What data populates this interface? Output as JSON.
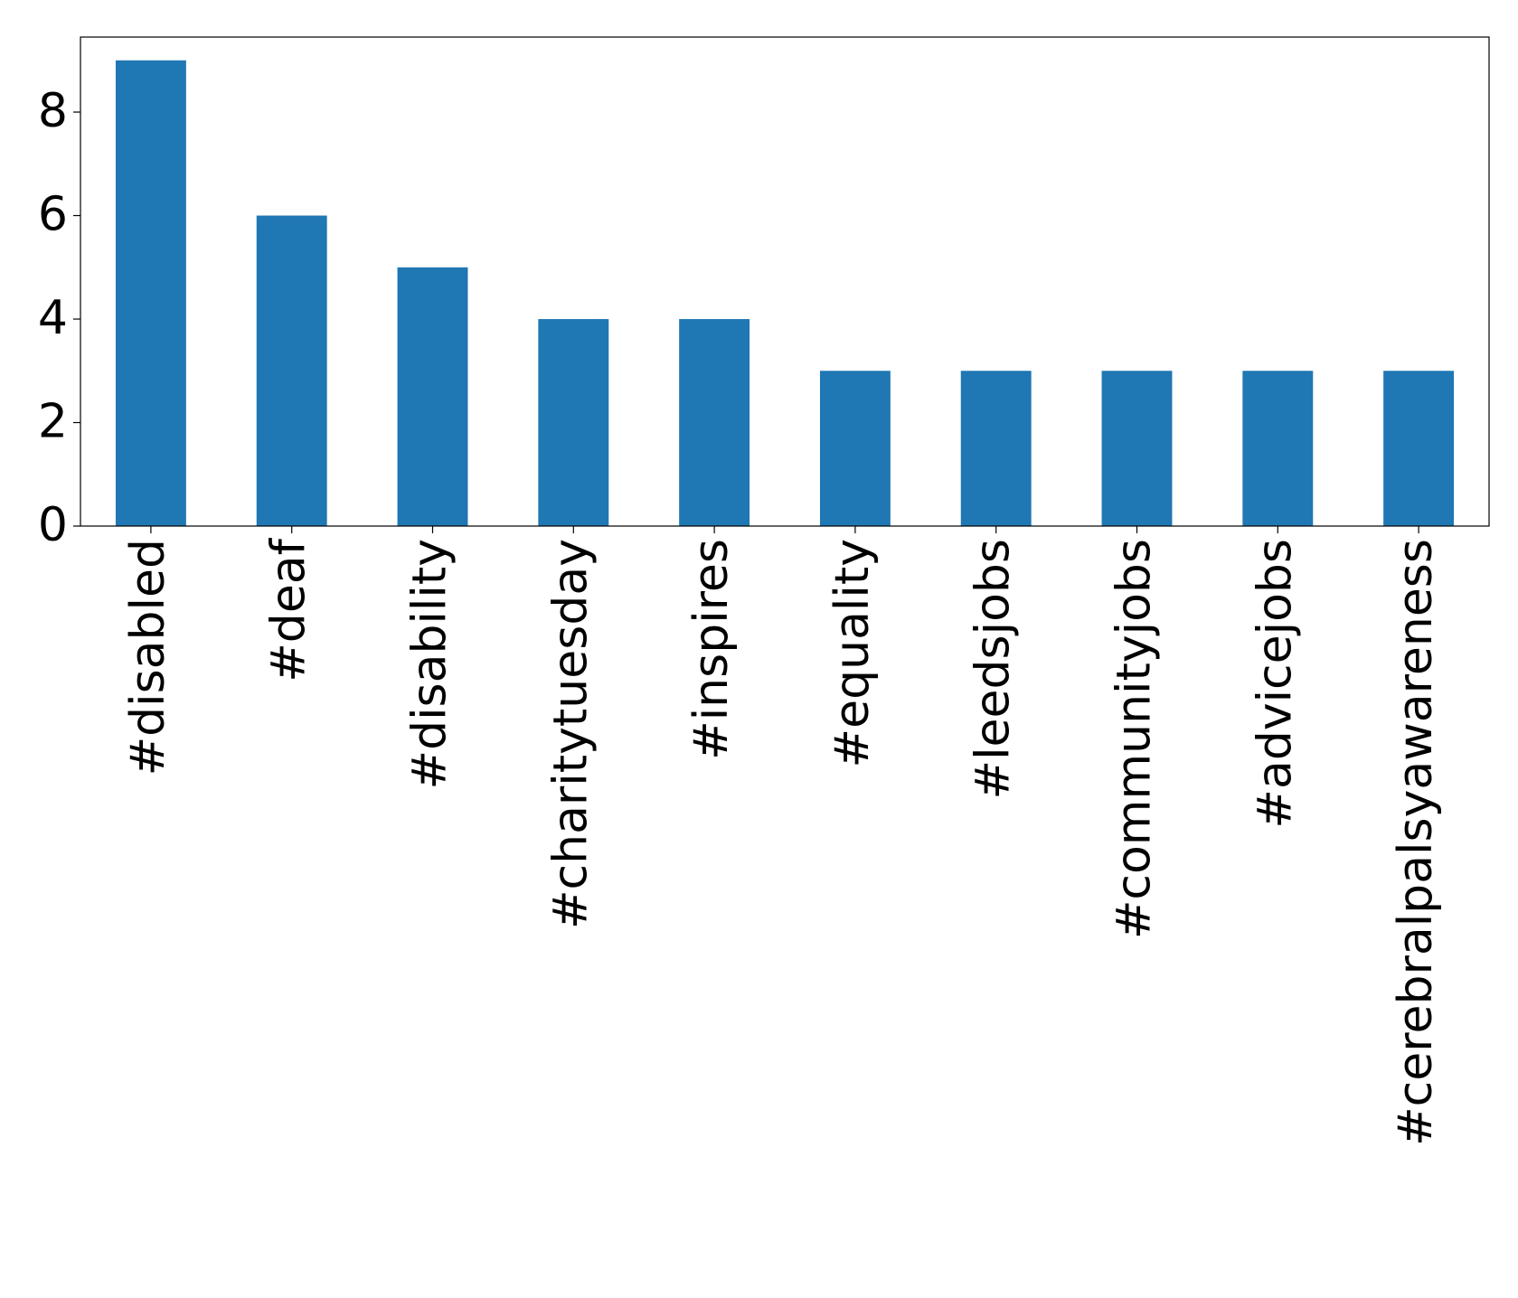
{
  "chart_data": {
    "type": "bar",
    "categories": [
      "#disabled",
      "#deaf",
      "#disability",
      "#charitytuesday",
      "#inspires",
      "#equality",
      "#leedsjobs",
      "#communityjobs",
      "#advicejobs",
      "#cerebralpalsyawareness"
    ],
    "values": [
      9,
      6,
      5,
      4,
      4,
      3,
      3,
      3,
      3,
      3
    ],
    "color": "#1f77b4",
    "ylim": [
      0,
      9.45
    ],
    "yticks": [
      0,
      2,
      4,
      6,
      8
    ],
    "grid": false
  }
}
